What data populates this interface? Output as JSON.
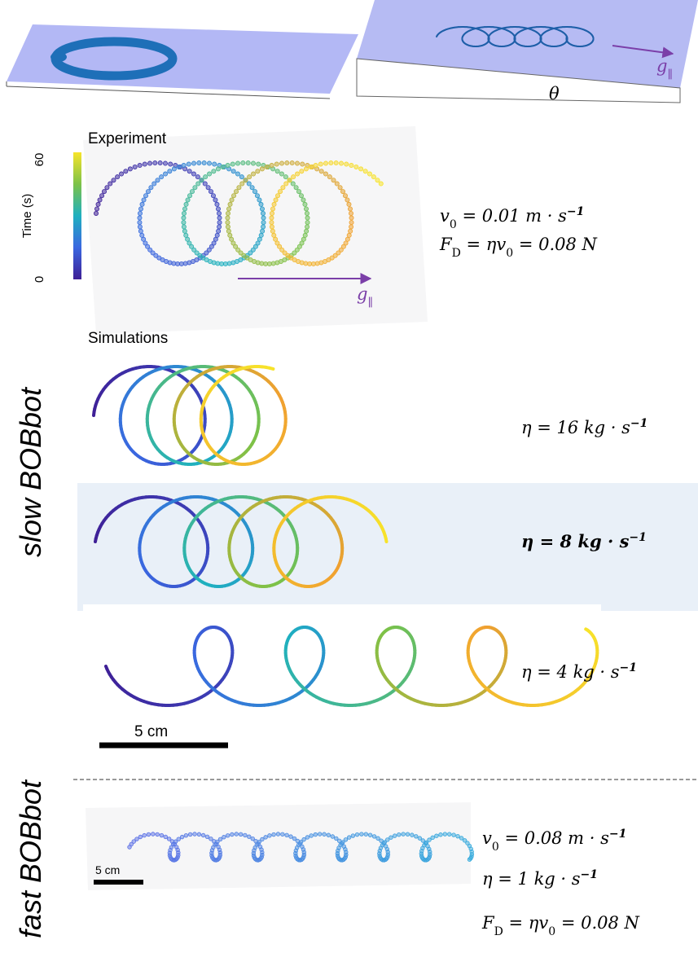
{
  "top": {
    "g": [
      {
        "t": "g"
      },
      {
        "sub": "∥"
      }
    ],
    "theta": "θ"
  },
  "experiment": {
    "title": "Experiment",
    "colorbar": {
      "label": "Time (s)",
      "ticks": [
        60,
        0
      ]
    },
    "g": [
      {
        "t": "g"
      },
      {
        "sub": "∥"
      }
    ],
    "eqs": [
      [
        {
          "t": "v"
        },
        {
          "sub": "0"
        },
        {
          "t": " = 0.01 m · s"
        },
        {
          "sup": "−1"
        }
      ],
      [
        {
          "t": "F"
        },
        {
          "sub": "D"
        },
        {
          "t": " = ηv"
        },
        {
          "sub": "0"
        },
        {
          "t": " = 0.08 N"
        }
      ]
    ]
  },
  "simulations": {
    "title": "Simulations",
    "group": "slow BOBbot",
    "scale": "5 cm",
    "runs": [
      {
        "label": [
          {
            "t": "η = 16 kg · s"
          },
          {
            "sup": "−1"
          }
        ],
        "bold": false
      },
      {
        "label": [
          {
            "t": "η = 8 kg · s"
          },
          {
            "sup": "−1"
          }
        ],
        "bold": true
      },
      {
        "label": [
          {
            "t": "η = 4 kg · s"
          },
          {
            "sup": "−1"
          }
        ],
        "bold": false
      }
    ]
  },
  "fast": {
    "group": "fast BOBbot",
    "scale": "5 cm",
    "eqs": [
      [
        {
          "t": "v"
        },
        {
          "sub": "0"
        },
        {
          "t": " = 0.08 m · s"
        },
        {
          "sup": "−1"
        }
      ],
      [
        {
          "t": "η = 1 kg · s"
        },
        {
          "sup": "−1"
        }
      ],
      [
        {
          "t": "F"
        },
        {
          "sub": "D"
        },
        {
          "t": " = ηv"
        },
        {
          "sub": "0"
        },
        {
          "t": " = 0.08 N"
        }
      ]
    ]
  }
}
